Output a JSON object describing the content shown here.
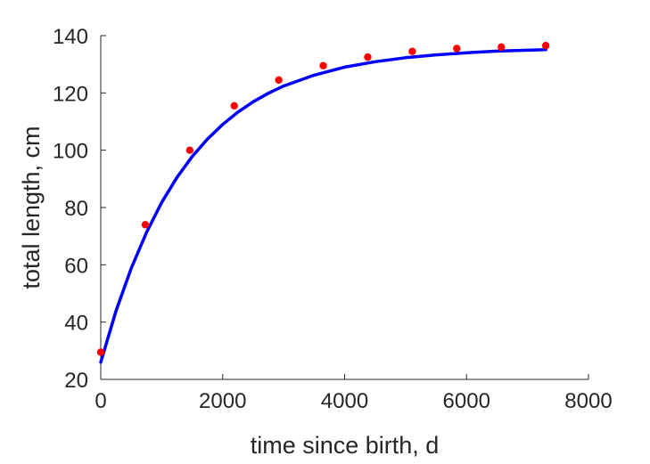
{
  "chart_data": {
    "type": "scatter",
    "title": "",
    "xlabel": "time since birth, d",
    "ylabel": "total length, cm",
    "xlim": [
      0,
      8000
    ],
    "ylim": [
      20,
      140
    ],
    "xticks": [
      0,
      2000,
      4000,
      6000,
      8000
    ],
    "yticks": [
      20,
      40,
      60,
      80,
      100,
      120,
      140
    ],
    "grid": false,
    "legend": "none",
    "series": [
      {
        "kind": "scatter",
        "color": "#ff0000",
        "x": [
          0,
          730,
          1460,
          2190,
          2920,
          3650,
          4380,
          5110,
          5840,
          6570,
          7300
        ],
        "y": [
          29.5,
          74,
          100,
          115.5,
          124.5,
          129.5,
          132.5,
          134.5,
          135.5,
          136,
          136.5
        ]
      },
      {
        "kind": "line",
        "color": "#0000ff",
        "x": [
          0,
          250,
          500,
          750,
          1000,
          1250,
          1500,
          1750,
          2000,
          2250,
          2500,
          2750,
          3000,
          3500,
          4000,
          4500,
          5000,
          5500,
          6000,
          6500,
          7000,
          7300
        ],
        "y": [
          26,
          43.9,
          58.8,
          71.3,
          81.8,
          90.5,
          97.8,
          103.9,
          109.0,
          113.3,
          116.9,
          119.9,
          122.4,
          126.2,
          129.0,
          130.9,
          132.3,
          133.3,
          134.0,
          134.6,
          134.9,
          135.1
        ]
      }
    ]
  }
}
